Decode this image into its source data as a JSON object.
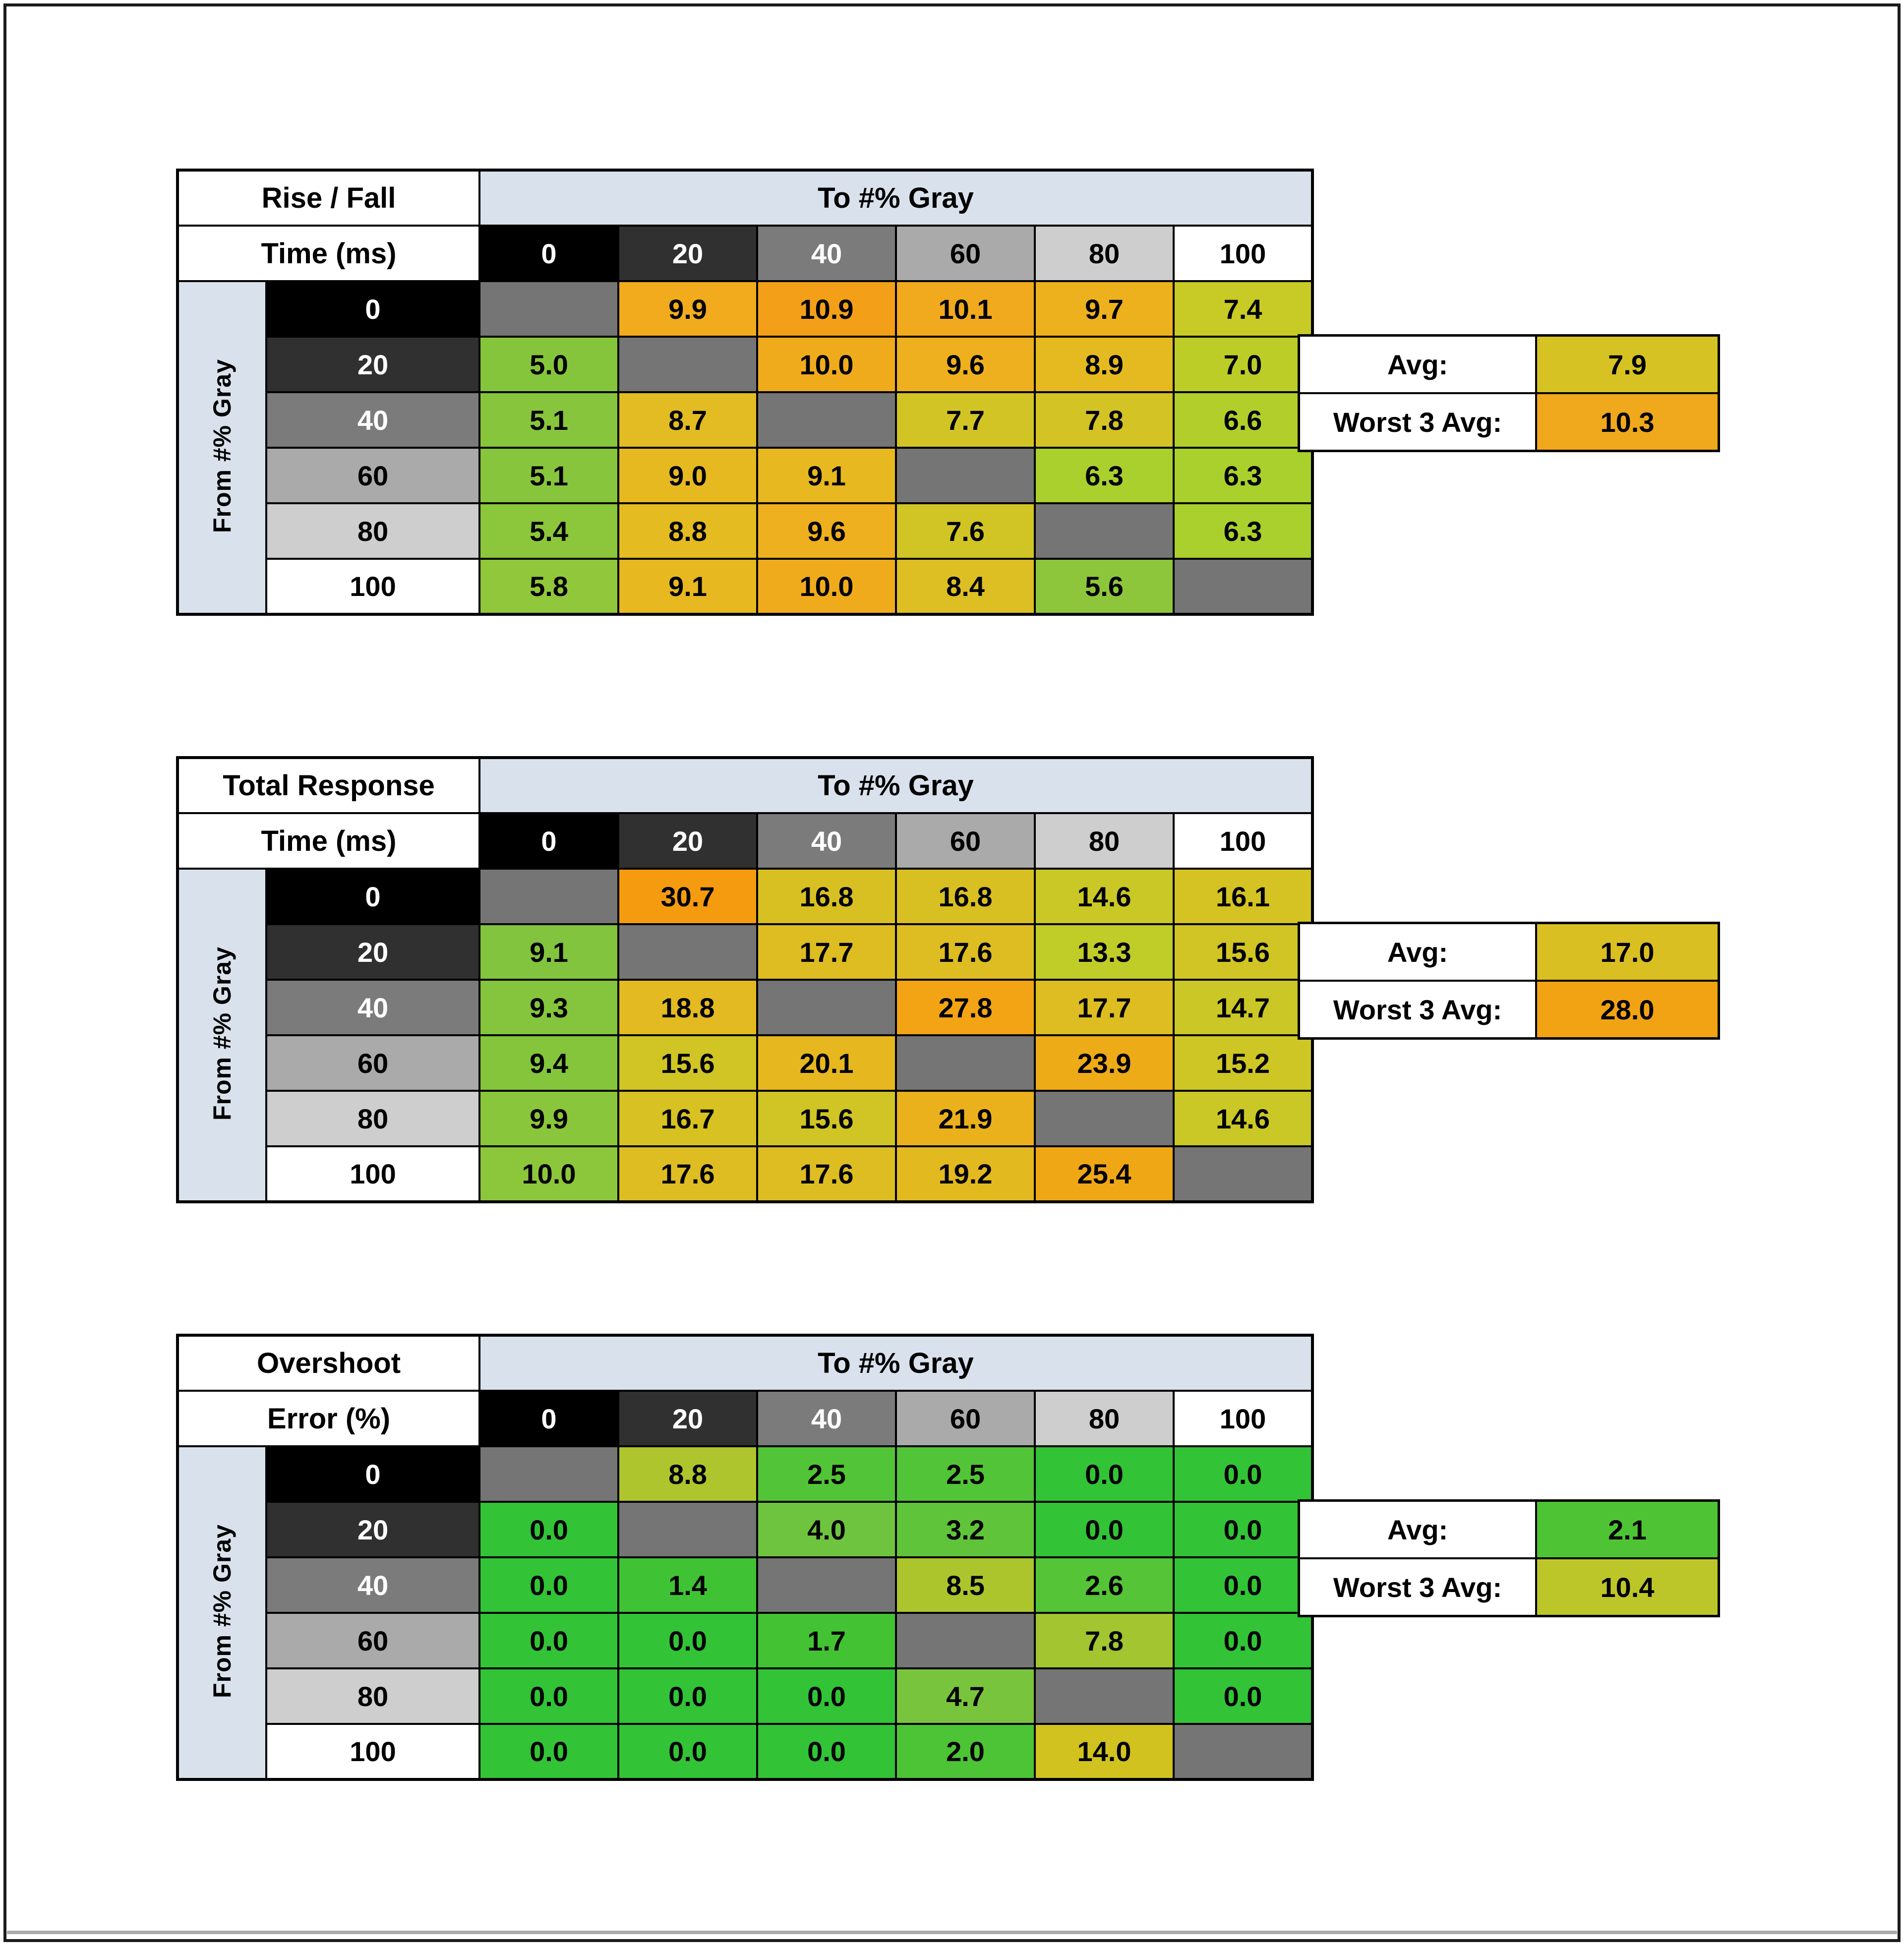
{
  "shared": {
    "to_axis_label": "To #% Gray",
    "from_axis_label": "From #% Gray",
    "avg_label": "Avg:",
    "worst_label": "Worst 3 Avg:",
    "gray_levels": [
      "0",
      "20",
      "40",
      "60",
      "80",
      "100"
    ],
    "gray_scale_bg": [
      "#000000",
      "#303030",
      "#7b7b7b",
      "#aaaaaa",
      "#cecece",
      "#ffffff"
    ],
    "gray_scale_fg": [
      "#ffffff",
      "#ffffff",
      "#ffffff",
      "#000000",
      "#000000",
      "#000000"
    ],
    "diagonal_bg": "#757575",
    "axis_header_bg": "#d9e2ec"
  },
  "chart_data": [
    {
      "type": "heatmap",
      "name": "rise-fall-time",
      "title": "Rise / Fall Time (ms)",
      "title_lines": [
        "Rise / Fall",
        "Time (ms)"
      ],
      "x_label": "To #% Gray",
      "y_label": "From #% Gray",
      "x_ticks": [
        "0",
        "20",
        "40",
        "60",
        "80",
        "100"
      ],
      "y_ticks": [
        "0",
        "20",
        "40",
        "60",
        "80",
        "100"
      ],
      "values": [
        [
          null,
          9.9,
          10.9,
          10.1,
          9.7,
          7.4
        ],
        [
          5.0,
          null,
          10.0,
          9.6,
          8.9,
          7.0
        ],
        [
          5.1,
          8.7,
          null,
          7.7,
          7.8,
          6.6
        ],
        [
          5.1,
          9.0,
          9.1,
          null,
          6.3,
          6.3
        ],
        [
          5.4,
          8.8,
          9.6,
          7.6,
          null,
          6.3
        ],
        [
          5.8,
          9.1,
          10.0,
          8.4,
          5.6,
          null
        ]
      ],
      "cell_colors": [
        [
          null,
          "#f1ab1d",
          "#f39f18",
          "#f1a91d",
          "#eeb11e",
          "#c8ca26"
        ],
        [
          "#85c53c",
          null,
          "#f0ab1d",
          "#eeb01e",
          "#e5ba21",
          "#bdcd28"
        ],
        [
          "#87c53c",
          "#e2bc22",
          null,
          "#d3c425",
          "#d4c324",
          "#b2ce2a"
        ],
        [
          "#87c53c",
          "#e6b921",
          "#e7b820",
          null,
          "#a9d02d",
          "#a9d02d"
        ],
        [
          "#8bc63b",
          "#e4bb21",
          "#eeb01e",
          "#d1c525",
          null,
          "#a9d02d"
        ],
        [
          "#91c73a",
          "#e7b820",
          "#f0ab1d",
          "#ddbf23",
          "#8ec63b",
          null
        ]
      ],
      "avg": 7.9,
      "avg_color": "#d6c223",
      "worst3_avg": 10.3,
      "worst3_color": "#f0a81c"
    },
    {
      "type": "heatmap",
      "name": "total-response-time",
      "title": "Total Response Time (ms)",
      "title_lines": [
        "Total Response",
        "Time (ms)"
      ],
      "x_label": "To #% Gray",
      "y_label": "From #% Gray",
      "x_ticks": [
        "0",
        "20",
        "40",
        "60",
        "80",
        "100"
      ],
      "y_ticks": [
        "0",
        "20",
        "40",
        "60",
        "80",
        "100"
      ],
      "values": [
        [
          null,
          30.7,
          16.8,
          16.8,
          14.6,
          16.1
        ],
        [
          9.1,
          null,
          17.7,
          17.6,
          13.3,
          15.6
        ],
        [
          9.3,
          18.8,
          null,
          27.8,
          17.7,
          14.7
        ],
        [
          9.4,
          15.6,
          20.1,
          null,
          23.9,
          15.2
        ],
        [
          9.9,
          16.7,
          15.6,
          21.9,
          null,
          14.6
        ],
        [
          10.0,
          17.6,
          17.6,
          19.2,
          25.4,
          null
        ]
      ],
      "cell_colors": [
        [
          null,
          "#f59b10",
          "#d9c022",
          "#d9c022",
          "#c9c826",
          "#d4c323"
        ],
        [
          "#82c43d",
          null,
          "#debd22",
          "#debd22",
          "#c0cc28",
          "#d0c524"
        ],
        [
          "#84c53d",
          "#e3ba21",
          null,
          "#f2a414",
          "#debd22",
          "#cac726"
        ],
        [
          "#85c53c",
          "#d0c524",
          "#e6b71f",
          null,
          "#eeab18",
          "#cec625"
        ],
        [
          "#8ac63b",
          "#d8c122",
          "#d0c524",
          "#eab11c",
          null,
          "#c9c826"
        ],
        [
          "#8cc63b",
          "#debd22",
          "#debd22",
          "#e3b920",
          "#f0a715",
          null
        ]
      ],
      "avg": 17.0,
      "avg_color": "#dabf22",
      "worst3_avg": 28.0,
      "worst3_color": "#f2a313"
    },
    {
      "type": "heatmap",
      "name": "overshoot-error",
      "title": "Overshoot Error (%)",
      "title_lines": [
        "Overshoot",
        "Error (%)"
      ],
      "x_label": "To #% Gray",
      "y_label": "From #% Gray",
      "x_ticks": [
        "0",
        "20",
        "40",
        "60",
        "80",
        "100"
      ],
      "y_ticks": [
        "0",
        "20",
        "40",
        "60",
        "80",
        "100"
      ],
      "values": [
        [
          null,
          8.8,
          2.5,
          2.5,
          0.0,
          0.0
        ],
        [
          0.0,
          null,
          4.0,
          3.2,
          0.0,
          0.0
        ],
        [
          0.0,
          1.4,
          null,
          8.5,
          2.6,
          0.0
        ],
        [
          0.0,
          0.0,
          1.7,
          null,
          7.8,
          0.0
        ],
        [
          0.0,
          0.0,
          0.0,
          4.7,
          null,
          0.0
        ],
        [
          0.0,
          0.0,
          0.0,
          2.0,
          14.0,
          null
        ]
      ],
      "cell_colors": [
        [
          null,
          "#aec52d",
          "#52c437",
          "#52c437",
          "#32c337",
          "#32c337"
        ],
        [
          "#32c337",
          null,
          "#6fc43f",
          "#60c43b",
          "#32c337",
          "#32c337"
        ],
        [
          "#32c337",
          "#3fc334",
          null,
          "#adc52d",
          "#55c436",
          "#32c337"
        ],
        [
          "#32c337",
          "#32c337",
          "#43c333",
          null,
          "#a2c530",
          "#32c337"
        ],
        [
          "#32c337",
          "#32c337",
          "#32c337",
          "#79c43d",
          null,
          "#32c337"
        ],
        [
          "#32c337",
          "#32c337",
          "#32c337",
          "#4cc435",
          "#d1c21f",
          null
        ]
      ],
      "avg": 2.1,
      "avg_color": "#4ec435",
      "worst3_avg": 10.4,
      "worst3_color": "#bdc629"
    }
  ]
}
